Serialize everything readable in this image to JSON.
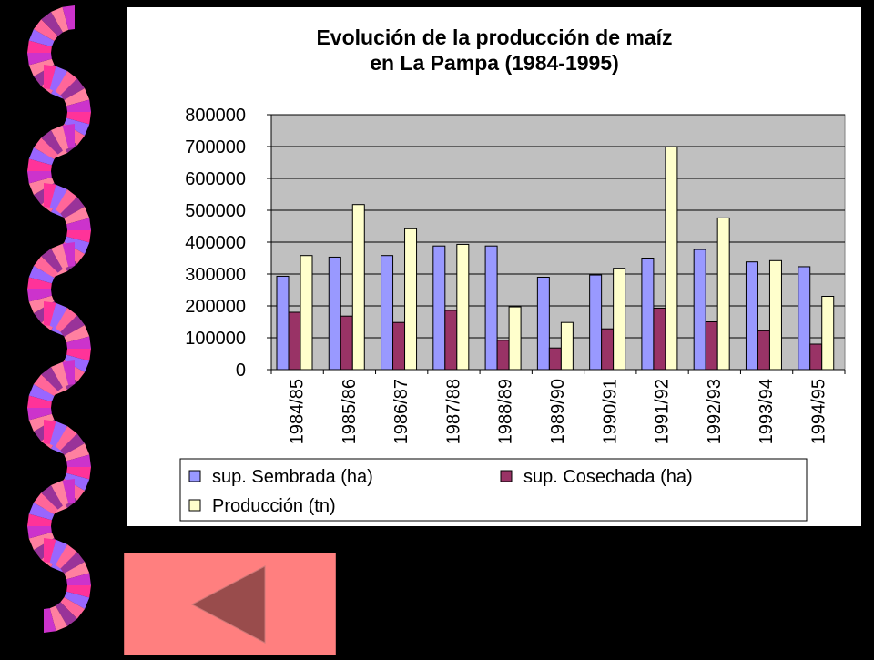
{
  "chart_data": {
    "type": "bar",
    "title_line1": "Evolución de la producción de maíz",
    "title_line2": "en La Pampa (1984-1995)",
    "categories": [
      "1984/85",
      "1985/86",
      "1986/87",
      "1987/88",
      "1988/89",
      "1989/90",
      "1990/91",
      "1991/92",
      "1992/93",
      "1993/94",
      "1994/95"
    ],
    "series": [
      {
        "name": "sup. Sembrada (ha)",
        "color": "#9999ff",
        "values": [
          293000,
          353000,
          358000,
          388000,
          388000,
          290000,
          297000,
          350000,
          377000,
          338000,
          323000
        ]
      },
      {
        "name": "sup. Cosechada (ha)",
        "color": "#993366",
        "values": [
          180000,
          168000,
          148000,
          186000,
          92000,
          68000,
          128000,
          193000,
          150000,
          122000,
          80000
        ]
      },
      {
        "name": "Producción (tn)",
        "color": "#ffffcc",
        "values": [
          358000,
          518000,
          442000,
          393000,
          197000,
          148000,
          318000,
          700000,
          476000,
          342000,
          230000
        ]
      }
    ],
    "yticks": [
      "0",
      "100000",
      "200000",
      "300000",
      "400000",
      "500000",
      "600000",
      "700000",
      "800000"
    ],
    "ylim": [
      0,
      800000
    ],
    "grid": true,
    "legend_position": "bottom",
    "plot_background": "#c0c0c0"
  },
  "colors": {
    "background": "#000000",
    "panel": "#ffffff",
    "back_button": "#ff7f7f",
    "back_arrow": "#994c4c"
  },
  "icons": {
    "back": "back-arrow-icon",
    "decoration": "fan-border-decoration"
  }
}
